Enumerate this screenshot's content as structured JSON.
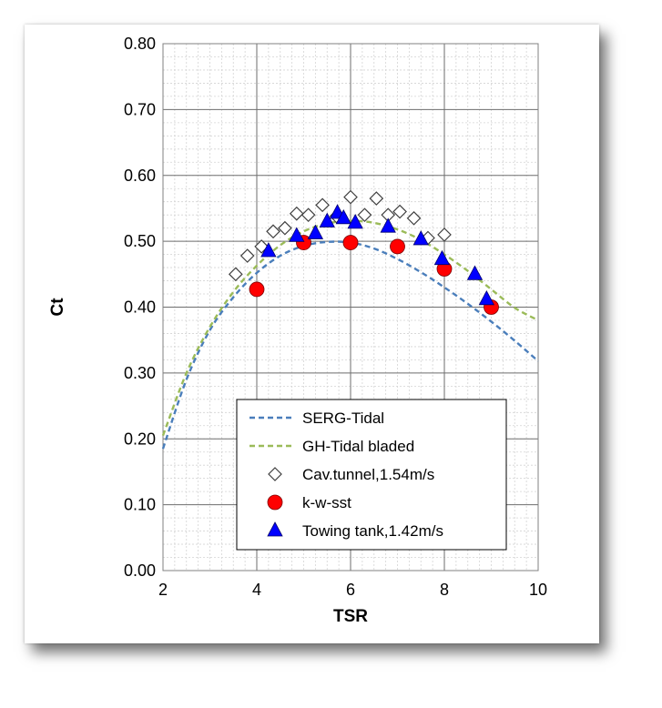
{
  "chart_data": {
    "type": "scatter",
    "xlabel": "TSR",
    "ylabel": "Ct",
    "xlim": [
      2,
      10
    ],
    "ylim": [
      0,
      0.8
    ],
    "xticks": [
      "2",
      "4",
      "6",
      "8",
      "10"
    ],
    "yticks": [
      "0.00",
      "0.10",
      "0.20",
      "0.30",
      "0.40",
      "0.50",
      "0.60",
      "0.70",
      "0.80"
    ],
    "grid": true,
    "legend_position": "bottom-right",
    "series": [
      {
        "name": "SERG-Tidal",
        "style": "dashed-line",
        "color": "#4a7ebb",
        "x": [
          2.0,
          2.5,
          3.0,
          3.5,
          4.0,
          4.5,
          5.0,
          5.5,
          6.0,
          6.5,
          7.0,
          7.5,
          8.0,
          8.5,
          9.0,
          9.5,
          10.0
        ],
        "y": [
          0.185,
          0.29,
          0.365,
          0.415,
          0.452,
          0.478,
          0.493,
          0.499,
          0.498,
          0.489,
          0.473,
          0.453,
          0.43,
          0.405,
          0.378,
          0.349,
          0.318
        ]
      },
      {
        "name": "GH-Tidal bladed",
        "style": "dashed-line",
        "color": "#9bbb59",
        "x": [
          2.0,
          2.5,
          3.0,
          3.5,
          4.0,
          4.5,
          5.0,
          5.5,
          6.0,
          6.5,
          7.0,
          7.5,
          8.0,
          8.5,
          9.0,
          9.5,
          10.0
        ],
        "y": [
          0.205,
          0.3,
          0.37,
          0.423,
          0.463,
          0.494,
          0.515,
          0.527,
          0.531,
          0.528,
          0.518,
          0.502,
          0.48,
          0.455,
          0.427,
          0.399,
          0.38
        ]
      },
      {
        "name": "Cav.tunnel,1.54m/s",
        "marker": "diamond-open",
        "color": "#000000",
        "x": [
          3.55,
          3.8,
          4.1,
          4.35,
          4.6,
          4.85,
          5.1,
          5.4,
          5.7,
          6.0,
          6.3,
          6.55,
          6.8,
          7.05,
          7.35,
          7.65,
          8.0
        ],
        "y": [
          0.45,
          0.478,
          0.492,
          0.515,
          0.52,
          0.542,
          0.54,
          0.555,
          0.538,
          0.567,
          0.54,
          0.565,
          0.54,
          0.545,
          0.535,
          0.505,
          0.51
        ]
      },
      {
        "name": "k-w-sst",
        "marker": "circle-filled",
        "color": "#ff0000",
        "x": [
          4.0,
          5.0,
          6.0,
          7.0,
          8.0,
          9.0
        ],
        "y": [
          0.427,
          0.498,
          0.498,
          0.492,
          0.458,
          0.4
        ]
      },
      {
        "name": "Towing tank,1.42m/s",
        "marker": "triangle-filled",
        "color": "#0000ff",
        "x": [
          4.25,
          4.85,
          5.25,
          5.5,
          5.72,
          5.85,
          6.1,
          6.8,
          7.5,
          7.95,
          8.65,
          8.9
        ],
        "y": [
          0.485,
          0.508,
          0.512,
          0.53,
          0.543,
          0.535,
          0.528,
          0.522,
          0.503,
          0.473,
          0.45,
          0.412
        ]
      }
    ]
  }
}
